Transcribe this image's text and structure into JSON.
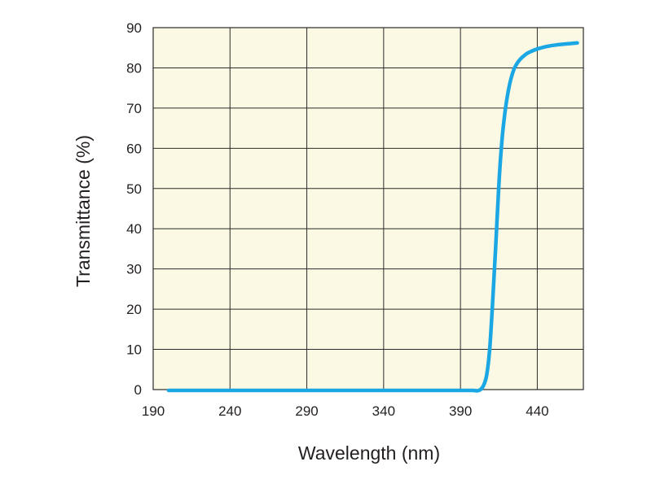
{
  "chart_data": {
    "type": "line",
    "title": "",
    "xlabel": "Wavelength (nm)",
    "ylabel": "Transmittance (%)",
    "xlim": [
      190,
      470
    ],
    "ylim": [
      0,
      90
    ],
    "xticks": [
      190,
      240,
      290,
      340,
      390,
      440
    ],
    "yticks": [
      0,
      10,
      20,
      30,
      40,
      50,
      60,
      70,
      80,
      90
    ],
    "grid": true,
    "legend": "none",
    "colors": {
      "plot_background": "#fbf9e3",
      "grid": "#2b2b2b",
      "line": "#1aa7e4",
      "text": "#231f20"
    },
    "series": [
      {
        "name": "Transmittance",
        "x": [
          200,
          250,
          300,
          350,
          390,
          398,
          401,
          403,
          405,
          407,
          409,
          411,
          413,
          415,
          417,
          419,
          421,
          423,
          425,
          427,
          429,
          431,
          433,
          436,
          440,
          446,
          452,
          460,
          466
        ],
        "y": [
          -0.2,
          -0.2,
          -0.2,
          -0.2,
          -0.2,
          -0.2,
          -0.3,
          0.0,
          1.0,
          3.5,
          10.0,
          22.0,
          36.0,
          51.0,
          62.0,
          69.0,
          74.0,
          77.5,
          79.8,
          81.2,
          82.2,
          82.9,
          83.5,
          84.1,
          84.7,
          85.3,
          85.7,
          86.0,
          86.2
        ]
      }
    ]
  }
}
